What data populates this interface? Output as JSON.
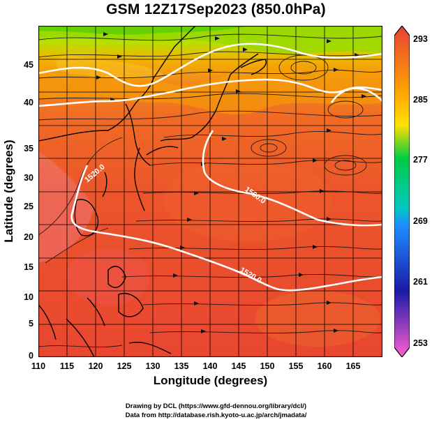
{
  "title": "GSM 12Z17Sep2023 (850.0hPa)",
  "xlabel": "Longitude (degrees)",
  "ylabel": "Latitude (degrees)",
  "credits": [
    "Drawing by DCL (https://www.gfd-dennou.org/library/dcl/)",
    "Data from http://database.rish.kyoto-u.ac.jp/arch/jmadata/"
  ],
  "chart_data": {
    "type": "map",
    "field": "temperature",
    "pressure_level": "850.0hPa",
    "x_range": [
      110,
      170
    ],
    "y_range": [
      0,
      50
    ],
    "x_ticks": [
      "110",
      "115",
      "120",
      "125",
      "130",
      "135",
      "140",
      "145",
      "150",
      "155",
      "160",
      "165"
    ],
    "y_ticks": [
      "0",
      "5",
      "10",
      "15",
      "20",
      "25",
      "30",
      "35",
      "40",
      "45"
    ],
    "grid": true,
    "streamlines": true,
    "colorbar": {
      "ticks": [
        "253",
        "261",
        "269",
        "277",
        "285",
        "293"
      ],
      "range": [
        253,
        293
      ],
      "colors": [
        "#ff60d0",
        "#1a1aa8",
        "#1e90ff",
        "#00cc44",
        "#ffa500",
        "#e64035"
      ]
    },
    "contour_labels": [
      "1520.0",
      "1560.0",
      "1520.0"
    ]
  }
}
